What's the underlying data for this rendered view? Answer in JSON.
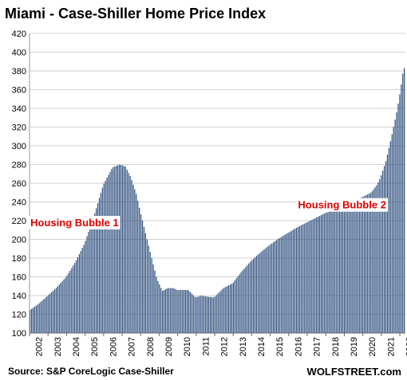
{
  "chart_data": {
    "type": "bar",
    "title": "Miami - Case-Shiller Home Price Index",
    "ylim": [
      100,
      420
    ],
    "yticks": [
      100,
      120,
      140,
      160,
      180,
      200,
      220,
      240,
      260,
      280,
      300,
      320,
      340,
      360,
      380,
      400,
      420
    ],
    "xticks": [
      "2002",
      "2003",
      "2004",
      "2005",
      "2006",
      "2007",
      "2008",
      "2009",
      "2010",
      "2011",
      "2012",
      "2013",
      "2014",
      "2015",
      "2016",
      "2017",
      "2018",
      "2019",
      "2020",
      "2021",
      "2022"
    ],
    "grid": true,
    "bar_color": "#2e4f7f",
    "x_start_year": 2002,
    "x_end_year": 2022.3,
    "anchors": [
      [
        2002.0,
        124
      ],
      [
        2002.5,
        131
      ],
      [
        2003.0,
        140
      ],
      [
        2003.5,
        149
      ],
      [
        2004.0,
        160
      ],
      [
        2004.5,
        176
      ],
      [
        2005.0,
        196
      ],
      [
        2005.5,
        225
      ],
      [
        2006.0,
        258
      ],
      [
        2006.5,
        277
      ],
      [
        2006.9,
        280
      ],
      [
        2007.2,
        278
      ],
      [
        2007.5,
        266
      ],
      [
        2007.8,
        248
      ],
      [
        2008.0,
        230
      ],
      [
        2008.5,
        190
      ],
      [
        2008.9,
        158
      ],
      [
        2009.2,
        145
      ],
      [
        2009.5,
        148
      ],
      [
        2009.8,
        148
      ],
      [
        2010.0,
        146
      ],
      [
        2010.3,
        146
      ],
      [
        2010.6,
        146
      ],
      [
        2011.0,
        138
      ],
      [
        2011.3,
        140
      ],
      [
        2011.6,
        139
      ],
      [
        2012.0,
        138
      ],
      [
        2012.5,
        148
      ],
      [
        2013.0,
        153
      ],
      [
        2013.5,
        166
      ],
      [
        2014.0,
        177
      ],
      [
        2014.5,
        186
      ],
      [
        2015.0,
        194
      ],
      [
        2015.5,
        201
      ],
      [
        2016.0,
        207
      ],
      [
        2016.5,
        213
      ],
      [
        2017.0,
        218
      ],
      [
        2017.5,
        223
      ],
      [
        2018.0,
        228
      ],
      [
        2018.5,
        232
      ],
      [
        2019.0,
        238
      ],
      [
        2019.5,
        242
      ],
      [
        2020.0,
        245
      ],
      [
        2020.5,
        250
      ],
      [
        2020.8,
        258
      ],
      [
        2021.0,
        266
      ],
      [
        2021.3,
        284
      ],
      [
        2021.6,
        310
      ],
      [
        2021.9,
        338
      ],
      [
        2022.1,
        362
      ],
      [
        2022.25,
        383
      ]
    ],
    "annotations": [
      {
        "text": "Housing Bubble 1",
        "x": 2002.05,
        "y": 214
      },
      {
        "text": "Housing Bubble 2",
        "x": 2016.5,
        "y": 233
      }
    ],
    "source": "Source: S&P CoreLogic Case-Shiller",
    "brand": "WOLFSTREET.com"
  }
}
